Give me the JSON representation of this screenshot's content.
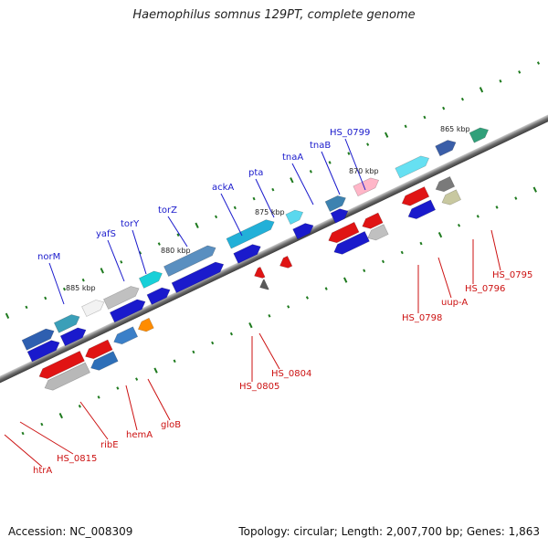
{
  "title": "Haemophilus somnus 129PT, complete genome",
  "footer": {
    "accession": "Accession: NC_008309",
    "topology": "Topology: circular; Length: 2,007,700 bp; Genes: 1,863"
  },
  "kbp_ticks": [
    "865 kbp",
    "870 kbp",
    "875 kbp",
    "880 kbp",
    "885 kbp"
  ],
  "top_labels": [
    "HS_0799",
    "tnaB",
    "tnaA",
    "pta",
    "ackA",
    "torZ",
    "torY",
    "yafS",
    "norM"
  ],
  "bottom_labels": [
    "HS_0795",
    "HS_0796",
    "uup-A",
    "HS_0798",
    "HS_0804",
    "HS_0805",
    "gloB",
    "hemA",
    "ribE",
    "HS_0815",
    "htrA"
  ],
  "colors": {
    "forward_strand": "#1a1acc",
    "reverse_strand": "#cc1111",
    "backbone": "#7a7a7a",
    "tick": "#1e7a1e"
  }
}
